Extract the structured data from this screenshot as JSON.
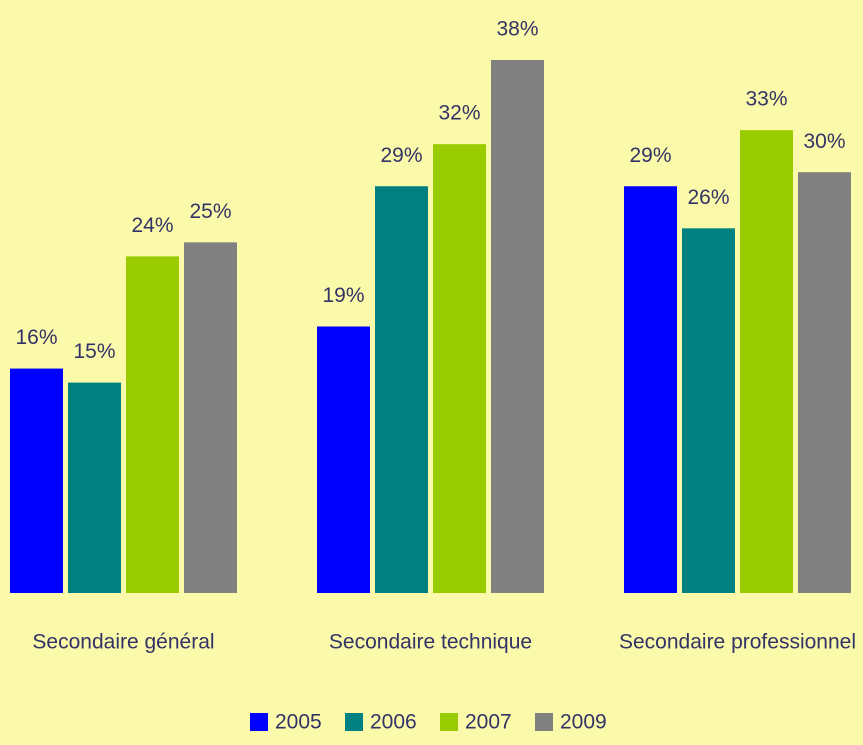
{
  "chart_data": {
    "type": "bar",
    "categories": [
      "Secondaire général",
      "Secondaire technique",
      "Secondaire professionnel"
    ],
    "series": [
      {
        "name": "2005",
        "color": "#0000ff",
        "values": [
          16,
          19,
          29
        ],
        "value_labels": [
          "16%",
          "19%",
          "29%"
        ]
      },
      {
        "name": "2006",
        "color": "#008080",
        "values": [
          15,
          29,
          26
        ],
        "value_labels": [
          "15%",
          "29%",
          "26%"
        ]
      },
      {
        "name": "2007",
        "color": "#99cc00",
        "values": [
          24,
          32,
          33
        ],
        "value_labels": [
          "24%",
          "32%",
          "33%"
        ]
      },
      {
        "name": "2009",
        "color": "#808080",
        "values": [
          25,
          38,
          30
        ],
        "value_labels": [
          "25%",
          "38%",
          "30%"
        ]
      }
    ],
    "legend": "bottom"
  }
}
